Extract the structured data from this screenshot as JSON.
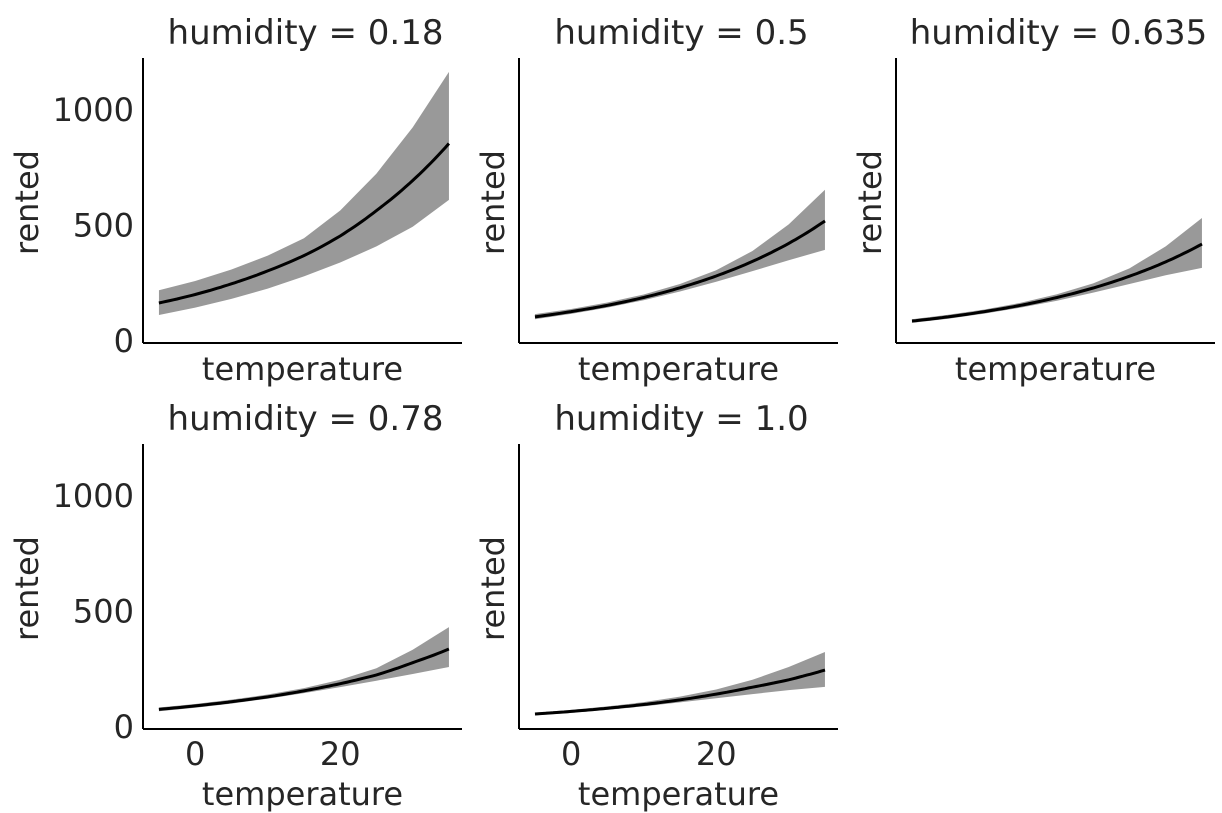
{
  "chart_data": {
    "type": "line",
    "description_kind": "faceted line with credible band",
    "xlabel": "temperature",
    "ylabel": "rented",
    "xlim": [
      -7.2,
      36.8
    ],
    "ylim": [
      -13,
      1220
    ],
    "x_ticks": [
      "0",
      "20"
    ],
    "x_tick_values": [
      0,
      20
    ],
    "y_ticks": [
      "0",
      "500",
      "1000"
    ],
    "y_tick_values": [
      0,
      500,
      1000
    ],
    "colors": {
      "line": "#000000",
      "band": "#999999",
      "text": "#262626"
    },
    "x": [
      -5,
      0,
      5,
      10,
      15,
      20,
      25,
      30,
      35
    ],
    "panels": [
      {
        "title": "humidity = 0.18",
        "mean": [
          160,
          197,
          243,
          299,
          365,
          450,
          560,
          690,
          850
        ],
        "lower": [
          108,
          140,
          178,
          222,
          275,
          335,
          405,
          490,
          606
        ],
        "upper": [
          215,
          255,
          305,
          365,
          440,
          560,
          720,
          920,
          1160
        ]
      },
      {
        "title": "humidity = 0.5",
        "mean": [
          100,
          123,
          150,
          184,
          226,
          277,
          340,
          418,
          515
        ],
        "lower": [
          90,
          113,
          140,
          172,
          210,
          252,
          298,
          345,
          390
        ],
        "upper": [
          112,
          134,
          162,
          197,
          242,
          302,
          385,
          500,
          650
        ]
      },
      {
        "title": "humidity = 0.635",
        "mean": [
          82,
          100,
          123,
          150,
          184,
          225,
          276,
          338,
          415
        ],
        "lower": [
          74,
          92,
          114,
          140,
          170,
          205,
          242,
          280,
          312
        ],
        "upper": [
          90,
          109,
          132,
          161,
          198,
          245,
          310,
          405,
          528
        ]
      },
      {
        "title": "humidity = 0.78",
        "mean": [
          72,
          87,
          105,
          126,
          152,
          183,
          221,
          274,
          333
        ],
        "lower": [
          64,
          79,
          97,
          118,
          142,
          168,
          196,
          225,
          255
        ],
        "upper": [
          80,
          95,
          114,
          136,
          164,
          200,
          250,
          330,
          428
        ]
      },
      {
        "title": "humidity = 1.0",
        "mean": [
          52,
          63,
          77,
          93,
          113,
          138,
          168,
          200,
          242
        ],
        "lower": [
          46,
          57,
          70,
          85,
          102,
          120,
          138,
          155,
          169
        ],
        "upper": [
          58,
          70,
          85,
          103,
          127,
          158,
          200,
          255,
          320
        ]
      }
    ]
  }
}
